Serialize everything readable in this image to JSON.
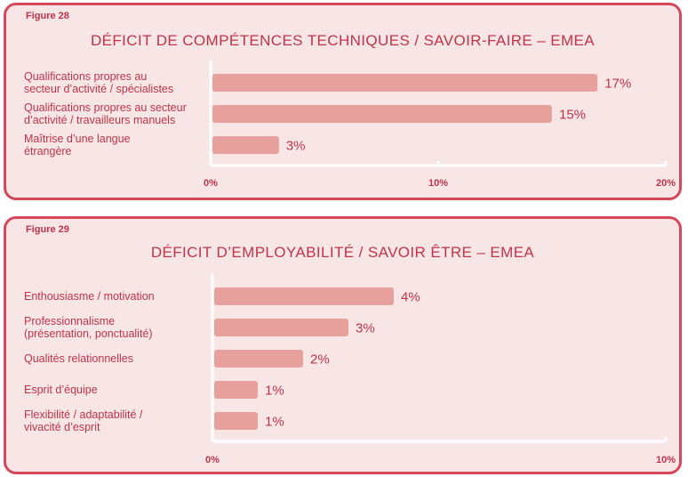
{
  "chart_data": [
    {
      "type": "bar",
      "orientation": "horizontal",
      "figure_label": "Figure 28",
      "title": "DÉFICIT DE COMPÉTENCES TECHNIQUES / SAVOIR-FAIRE – EMEA",
      "categories": [
        [
          "Qualifications propres au",
          "secteur d’activité / spécialistes"
        ],
        [
          "Qualifications propres au secteur",
          "d’activité / travailleurs manuels"
        ],
        [
          "Maîtrise d’une langue",
          "étrangère"
        ]
      ],
      "values": [
        17,
        15,
        3
      ],
      "value_labels": [
        "17%",
        "15%",
        "3%"
      ],
      "xlim": [
        0,
        20
      ],
      "ticks": [
        0,
        10,
        20
      ],
      "tick_labels": [
        "0%",
        "10%",
        "20%"
      ],
      "bar_color": "#e8a09d"
    },
    {
      "type": "bar",
      "orientation": "horizontal",
      "figure_label": "Figure 29",
      "title": "DÉFICIT D’EMPLOYABILITÉ / SAVOIR ÊTRE – EMEA",
      "categories": [
        [
          "Enthousiasme / motivation"
        ],
        [
          "Professionnalisme",
          "(présentation, ponctualité)"
        ],
        [
          "Qualités relationnelles"
        ],
        [
          "Esprit d’équipe"
        ],
        [
          "Flexibilité / adaptabilité /",
          "vivacité d’esprit"
        ]
      ],
      "values": [
        4,
        3,
        2,
        1,
        1
      ],
      "value_labels": [
        "4%",
        "3%",
        "2%",
        "1%",
        "1%"
      ],
      "xlim": [
        0,
        10
      ],
      "ticks": [
        0,
        10
      ],
      "tick_labels": [
        "0%",
        "10%"
      ],
      "bar_color": "#e8a09d"
    }
  ],
  "colors": {
    "accent": "#c2334a",
    "panel_border": "#d4485a",
    "panel_bg": "#f7e6e5",
    "bar": "#e8a09d"
  }
}
